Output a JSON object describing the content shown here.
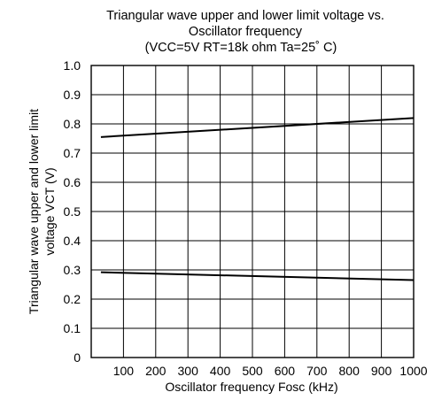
{
  "chart_data": {
    "type": "line",
    "title_lines": [
      "Triangular wave upper and lower limit voltage vs.",
      "Oscillator frequency",
      "(VCC=5V    RT=18k ohm    Ta=25˚ C)"
    ],
    "xlabel": "Oscillator frequency Fosc (kHz)",
    "ylabel_lines": [
      "Triangular wave upper and lower limit",
      "voltage VCT (V)"
    ],
    "xlim": [
      0,
      1000
    ],
    "ylim": [
      0,
      1.0
    ],
    "x_ticks": [
      100,
      200,
      300,
      400,
      500,
      600,
      700,
      800,
      900,
      1000
    ],
    "x_tick_labels": [
      "100",
      "200",
      "300",
      "400",
      "500",
      "600",
      "700",
      "800",
      "900",
      "1000"
    ],
    "y_ticks": [
      0,
      0.1,
      0.2,
      0.3,
      0.4,
      0.5,
      0.6,
      0.7,
      0.8,
      0.9,
      1.0
    ],
    "y_tick_labels": [
      "0",
      "0.1",
      "0.2",
      "0.3",
      "0.4",
      "0.5",
      "0.6",
      "0.7",
      "0.8",
      "0.9",
      "1.0"
    ],
    "grid": true,
    "series": [
      {
        "x": [
          30,
          1000
        ],
        "values": [
          0.755,
          0.82
        ]
      },
      {
        "x": [
          30,
          1000
        ],
        "values": [
          0.292,
          0.265
        ]
      }
    ],
    "line_color": "#000000",
    "grid_color": "#000000"
  }
}
